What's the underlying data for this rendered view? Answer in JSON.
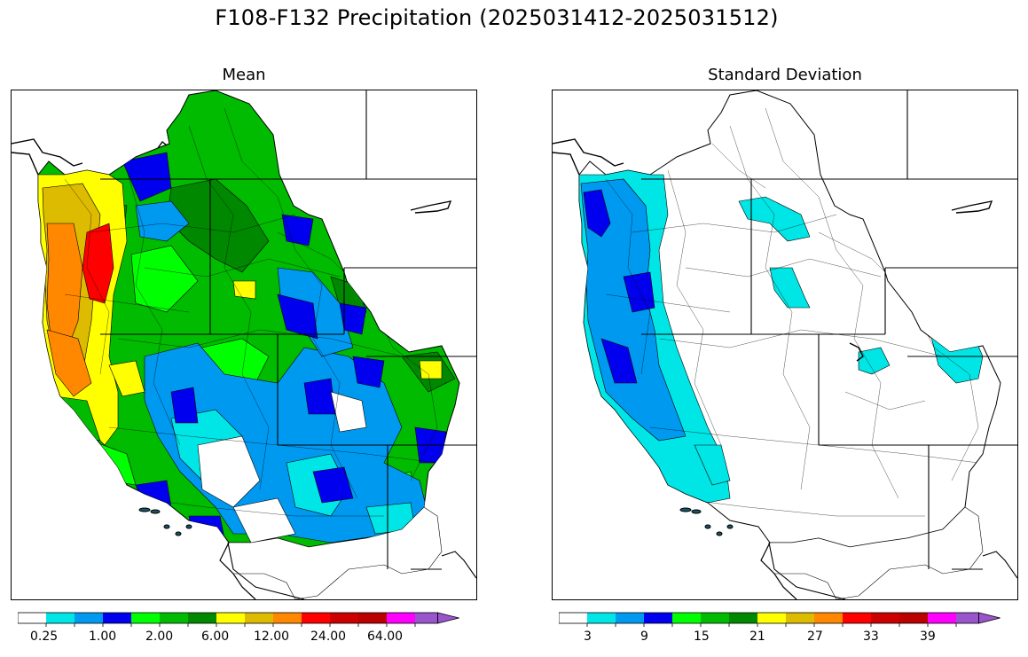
{
  "figure": {
    "title": "F108-F132 Precipitation (2025031412-2025031512)"
  },
  "panels": [
    {
      "title": "Mean",
      "colorbar": {
        "colors": [
          "#ffffff",
          "#00e5e5",
          "#0099f0",
          "#0000ee",
          "#00ff00",
          "#00bb00",
          "#008800",
          "#ffff00",
          "#ddbb00",
          "#ff8800",
          "#ff0000",
          "#cc0000",
          "#bb0000",
          "#ff00ff",
          "#9955cc"
        ],
        "tick_labels": [
          "0.25",
          "1.00",
          "2.00",
          "6.00",
          "12.00",
          "24.00",
          "64.00"
        ],
        "extend": "max"
      }
    },
    {
      "title": "Standard Deviation",
      "colorbar": {
        "colors": [
          "#ffffff",
          "#00e5e5",
          "#0099f0",
          "#0000ee",
          "#00ff00",
          "#00bb00",
          "#008800",
          "#ffff00",
          "#ddbb00",
          "#ff8800",
          "#ff0000",
          "#cc0000",
          "#bb0000",
          "#ff00ff",
          "#9955cc"
        ],
        "tick_labels": [
          "3",
          "9",
          "15",
          "21",
          "27",
          "33",
          "39"
        ],
        "extend": "max"
      }
    }
  ]
}
